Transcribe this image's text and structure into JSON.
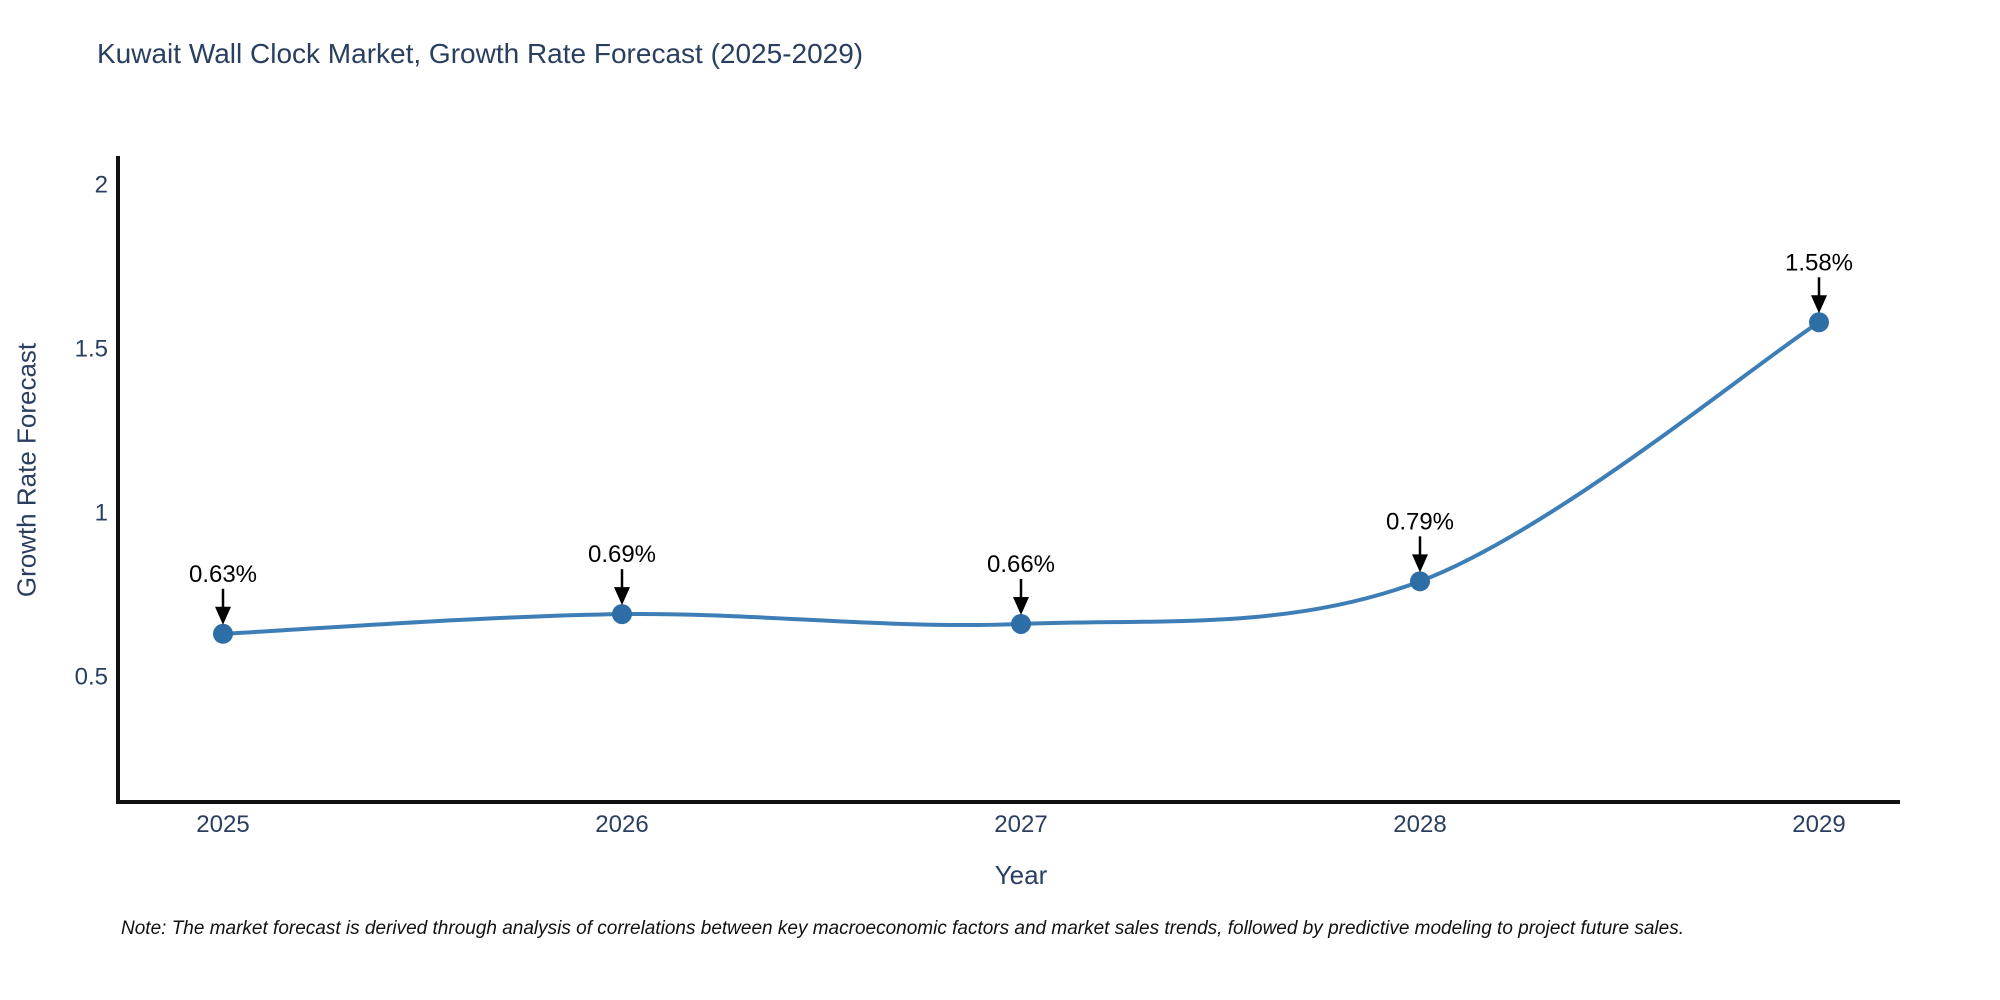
{
  "title": "Kuwait Wall Clock Market, Growth Rate Forecast (2025-2029)",
  "note": "Note: The market forecast is derived through analysis of correlations between key macroeconomic factors and market sales trends, followed by predictive modeling to project future sales.",
  "chart_data": {
    "type": "line",
    "title": "Kuwait Wall Clock Market, Growth Rate Forecast (2025-2029)",
    "xlabel": "Year",
    "ylabel": "Growth Rate Forecast",
    "categories": [
      "2025",
      "2026",
      "2027",
      "2028",
      "2029"
    ],
    "values": [
      0.63,
      0.69,
      0.66,
      0.79,
      1.58
    ],
    "annotations": [
      "0.63%",
      "0.69%",
      "0.66%",
      "0.79%",
      "1.58%"
    ],
    "y_ticks": [
      0.5,
      1,
      1.5,
      2
    ],
    "y_tick_labels": [
      "0.5",
      "1",
      "1.5",
      "2"
    ],
    "ylim": [
      0.117,
      2.081
    ],
    "grid": false,
    "line_shape": "spline",
    "legend": "none",
    "colors": {
      "line": "#3e7eb7",
      "marker": "#2e6ea6",
      "annotation_text": "#000000",
      "annotation_arrow": "#000000",
      "axis_line": "#111111",
      "tick_text": "#2a3f5f",
      "title_text": "#2a3f5f",
      "background": "#ffffff"
    }
  }
}
